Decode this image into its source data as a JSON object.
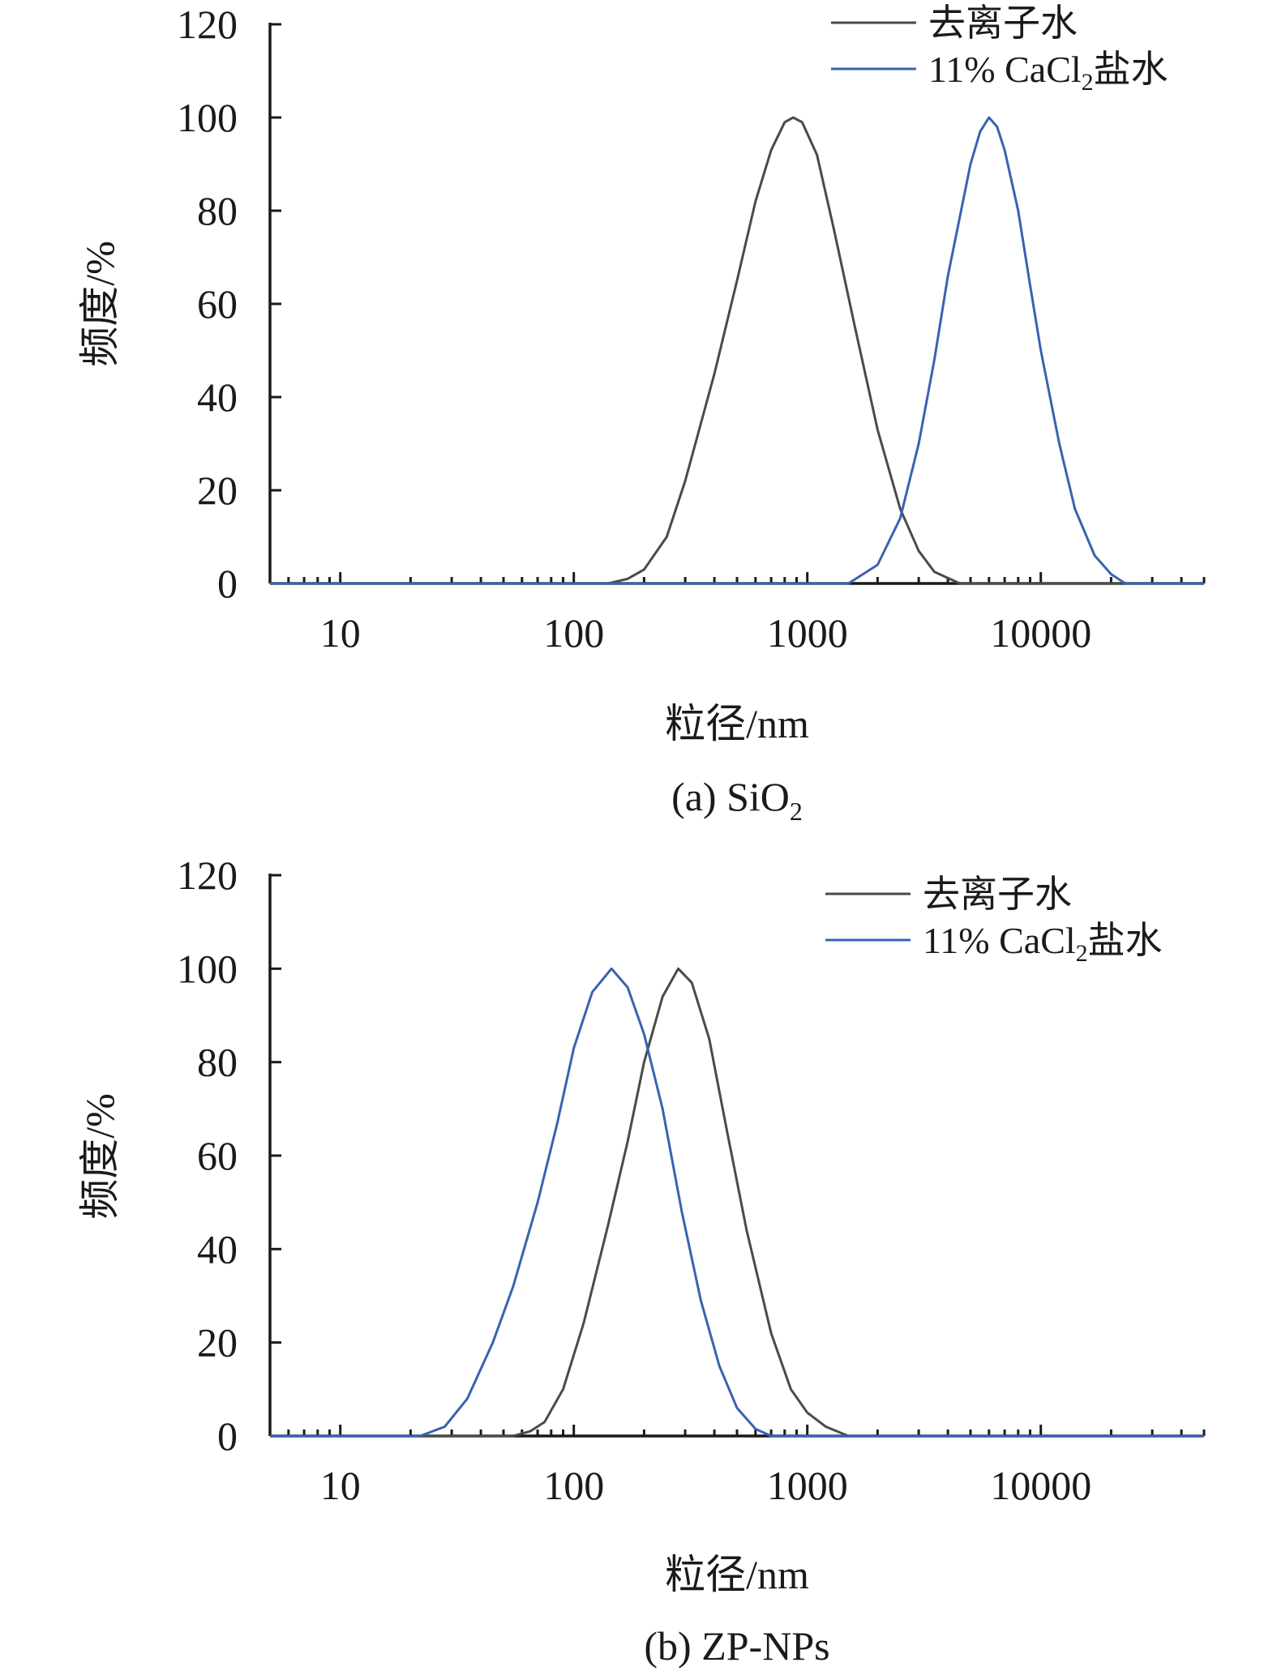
{
  "chart_data": [
    {
      "type": "line",
      "caption": "(a) SiO2",
      "caption_main": "(a) SiO",
      "caption_sub": "2",
      "xlabel": "粒径/nm",
      "ylabel": "频度/%",
      "xscale": "log",
      "xlim": [
        5,
        50000
      ],
      "ylim": [
        0,
        120
      ],
      "xticks": [
        10,
        100,
        1000,
        10000
      ],
      "xtick_labels": [
        "10",
        "100",
        "1000",
        "10000"
      ],
      "yticks": [
        0,
        20,
        40,
        60,
        80,
        100,
        120
      ],
      "ytick_labels": [
        "0",
        "20",
        "40",
        "60",
        "80",
        "100",
        "120"
      ],
      "grid": false,
      "legend_position": "top-right",
      "series": [
        {
          "name": "去离子水",
          "color": "#4a4a4a",
          "x": [
            5,
            140,
            170,
            200,
            250,
            300,
            400,
            500,
            600,
            700,
            800,
            870,
            950,
            1100,
            1300,
            1600,
            2000,
            2500,
            3000,
            3500,
            4500,
            50000
          ],
          "y": [
            0,
            0,
            1,
            3,
            10,
            22,
            45,
            65,
            82,
            93,
            99,
            100,
            99,
            92,
            76,
            55,
            33,
            16,
            7,
            2.5,
            0,
            0
          ]
        },
        {
          "name": "11% CaCl2盐水",
          "name_main": "11% CaCl",
          "name_sub": "2",
          "name_tail": "盐水",
          "color": "#3a62b0",
          "x": [
            5,
            1500,
            2000,
            2500,
            3000,
            3500,
            4000,
            5000,
            5500,
            6000,
            6500,
            7000,
            8000,
            9000,
            10000,
            12000,
            14000,
            17000,
            20000,
            23000,
            50000
          ],
          "y": [
            0,
            0,
            4,
            14,
            30,
            48,
            66,
            90,
            97,
            100,
            98,
            93,
            80,
            64,
            50,
            30,
            16,
            6,
            2,
            0,
            0
          ]
        }
      ]
    },
    {
      "type": "line",
      "caption": "(b) ZP-NPs",
      "caption_main": "(b) ZP-NPs",
      "caption_sub": "",
      "xlabel": "粒径/nm",
      "ylabel": "频度/%",
      "xscale": "log",
      "xlim": [
        5,
        50000
      ],
      "ylim": [
        0,
        120
      ],
      "xticks": [
        10,
        100,
        1000,
        10000
      ],
      "xtick_labels": [
        "10",
        "100",
        "1000",
        "10000"
      ],
      "yticks": [
        0,
        20,
        40,
        60,
        80,
        100,
        120
      ],
      "ytick_labels": [
        "0",
        "20",
        "40",
        "60",
        "80",
        "100",
        "120"
      ],
      "grid": false,
      "legend_position": "top-right",
      "series": [
        {
          "name": "去离子水",
          "color": "#4a4a4a",
          "x": [
            5,
            55,
            65,
            75,
            90,
            110,
            140,
            170,
            200,
            240,
            280,
            320,
            380,
            450,
            550,
            700,
            850,
            1000,
            1200,
            1500,
            50000
          ],
          "y": [
            0,
            0,
            1,
            3,
            10,
            24,
            45,
            63,
            80,
            94,
            100,
            97,
            85,
            66,
            44,
            22,
            10,
            5,
            2,
            0,
            0
          ]
        },
        {
          "name": "11% CaCl2盐水",
          "name_main": "11% CaCl",
          "name_sub": "2",
          "name_tail": "盐水",
          "color": "#3a62b0",
          "x": [
            5,
            22,
            28,
            35,
            45,
            55,
            70,
            85,
            100,
            120,
            145,
            170,
            200,
            240,
            290,
            350,
            420,
            500,
            600,
            700,
            50000
          ],
          "y": [
            0,
            0,
            2,
            8,
            20,
            32,
            50,
            67,
            83,
            95,
            100,
            96,
            86,
            70,
            48,
            29,
            15,
            6,
            1.5,
            0,
            0
          ]
        }
      ]
    }
  ]
}
